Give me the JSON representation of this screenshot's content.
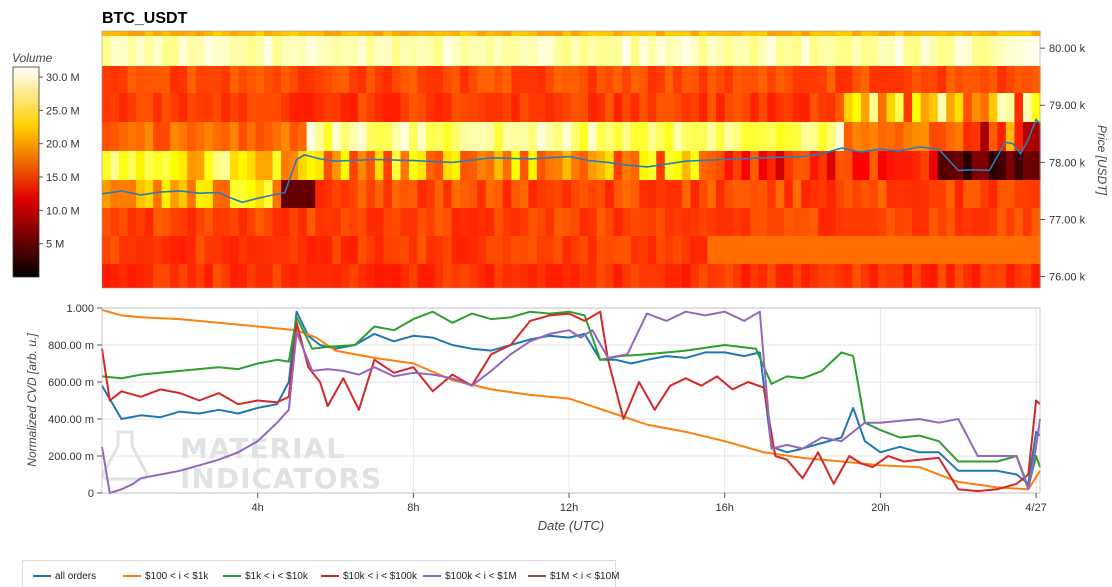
{
  "title": "BTC_USDT",
  "colors": {
    "all_orders": "#1f77b4",
    "s100_1k": "#ff7f0e",
    "s1k_10k": "#2ca02c",
    "s10k_100k": "#d62728",
    "s100k_1M": "#9467bd",
    "s1M_10M": "#8c564b"
  },
  "watermark": [
    "MATERIAL",
    "INDICATORS"
  ],
  "chart_data": [
    {
      "type": "heatmap",
      "title": "BTC_USDT",
      "ylabel": "Price [USDT]",
      "y_ticks": [
        "80.00 k",
        "79.00 k",
        "78.00 k",
        "77.00 k",
        "76.00 k"
      ],
      "y_tick_values": [
        80000,
        79000,
        78000,
        77000,
        76000
      ],
      "ylim": [
        75800,
        80300
      ],
      "x_range_hours": [
        0,
        24.1
      ],
      "colorbar": {
        "label": "Volume",
        "ticks": [
          "30.0 M",
          "25.0 M",
          "20.0 M",
          "15.0 M",
          "10.0 M",
          "5 M"
        ],
        "tick_values": [
          30,
          25,
          20,
          15,
          10,
          5
        ],
        "range": [
          0,
          31.5
        ],
        "colormap": "hot"
      },
      "price_series": {
        "name": "BTC price",
        "x": [
          0,
          0.5,
          1,
          1.5,
          2,
          2.5,
          3,
          3.3,
          3.6,
          4,
          4.4,
          4.7,
          5.0,
          5.2,
          5.6,
          6,
          7,
          8,
          9,
          10,
          11,
          12,
          12.5,
          13,
          13.5,
          14,
          15,
          16,
          17,
          18,
          18.5,
          19,
          19.5,
          20,
          20.5,
          21,
          21.5,
          22,
          22.4,
          22.8,
          23.0,
          23.2,
          23.4,
          23.6,
          23.8,
          24.0,
          24.1
        ],
        "y": [
          77450,
          77500,
          77430,
          77480,
          77500,
          77460,
          77470,
          77380,
          77300,
          77370,
          77430,
          77470,
          78050,
          78130,
          78060,
          78020,
          78050,
          78030,
          78000,
          78080,
          78060,
          78100,
          78030,
          78000,
          77950,
          77920,
          78020,
          78050,
          78080,
          78100,
          78150,
          78250,
          78180,
          78230,
          78200,
          78270,
          78230,
          77860,
          77870,
          77860,
          78100,
          78350,
          78330,
          78150,
          78400,
          78750,
          78680
        ]
      }
    },
    {
      "type": "line",
      "xlabel": "Date (UTC)",
      "ylabel": "Normalized CVD [arb. u.]",
      "x_ticks": [
        "4h",
        "8h",
        "12h",
        "16h",
        "20h",
        "4/27"
      ],
      "x_tick_hours": [
        4,
        8,
        12,
        16,
        20,
        24
      ],
      "y_ticks": [
        "1.000",
        "800.00 m",
        "600.00 m",
        "400.00 m",
        "200.00 m",
        "0"
      ],
      "y_tick_values": [
        1.0,
        0.8,
        0.6,
        0.4,
        0.2,
        0
      ],
      "ylim": [
        0,
        1.0
      ],
      "grid": true,
      "legend_position": "bottom-left",
      "series": [
        {
          "name": "all orders",
          "key": "all_orders",
          "x": [
            0,
            0.5,
            1,
            1.5,
            2,
            2.5,
            3,
            3.5,
            4,
            4.5,
            4.8,
            5.0,
            5.3,
            5.6,
            6,
            6.5,
            7,
            7.5,
            8,
            8.5,
            9,
            9.5,
            10,
            10.5,
            11,
            11.5,
            12,
            12.4,
            12.8,
            13.2,
            13.6,
            14,
            14.5,
            15,
            15.5,
            16,
            16.5,
            16.9,
            17.2,
            17.6,
            18,
            18.5,
            19,
            19.3,
            19.6,
            20,
            20.5,
            21,
            21.5,
            22,
            22.5,
            23,
            23.5,
            23.8,
            24.0,
            24.1
          ],
          "y": [
            0.58,
            0.4,
            0.42,
            0.41,
            0.44,
            0.43,
            0.45,
            0.43,
            0.46,
            0.48,
            0.6,
            0.98,
            0.85,
            0.8,
            0.78,
            0.8,
            0.86,
            0.82,
            0.85,
            0.84,
            0.8,
            0.78,
            0.77,
            0.8,
            0.83,
            0.85,
            0.84,
            0.86,
            0.72,
            0.72,
            0.7,
            0.72,
            0.74,
            0.73,
            0.76,
            0.76,
            0.74,
            0.76,
            0.25,
            0.22,
            0.24,
            0.27,
            0.3,
            0.46,
            0.28,
            0.22,
            0.25,
            0.22,
            0.22,
            0.12,
            0.12,
            0.12,
            0.1,
            0.05,
            0.33,
            0.31
          ]
        },
        {
          "name": "$100 < i < $1k",
          "key": "s100_1k",
          "x": [
            0,
            0.5,
            1,
            2,
            3,
            4,
            5,
            5.5,
            6,
            7,
            8,
            9,
            10,
            11,
            12,
            13,
            14,
            15,
            16,
            17,
            18,
            19,
            20,
            21,
            22,
            23,
            23.8,
            24.1
          ],
          "y": [
            0.99,
            0.96,
            0.95,
            0.94,
            0.92,
            0.9,
            0.88,
            0.84,
            0.77,
            0.73,
            0.7,
            0.61,
            0.56,
            0.53,
            0.51,
            0.44,
            0.37,
            0.33,
            0.28,
            0.22,
            0.19,
            0.17,
            0.15,
            0.14,
            0.06,
            0.03,
            0.02,
            0.12
          ]
        },
        {
          "name": "$1k < i < $10k",
          "key": "s1k_10k",
          "x": [
            0,
            0.5,
            1,
            2,
            3,
            3.5,
            4,
            4.5,
            4.8,
            5.0,
            5.4,
            5.8,
            6.5,
            7,
            7.5,
            8,
            8.5,
            9,
            9.5,
            10,
            10.5,
            11,
            11.5,
            12,
            12.4,
            12.8,
            13.3,
            14,
            15,
            16,
            16.8,
            17.2,
            17.6,
            18,
            18.5,
            19,
            19.3,
            19.6,
            20,
            20.5,
            21,
            21.5,
            22,
            22.5,
            23,
            23.5,
            23.8,
            24.0,
            24.1
          ],
          "y": [
            0.63,
            0.62,
            0.64,
            0.66,
            0.68,
            0.67,
            0.7,
            0.72,
            0.71,
            0.95,
            0.78,
            0.79,
            0.8,
            0.9,
            0.88,
            0.94,
            0.98,
            0.92,
            0.97,
            0.94,
            0.95,
            0.98,
            0.97,
            0.98,
            0.96,
            0.72,
            0.74,
            0.75,
            0.77,
            0.8,
            0.78,
            0.59,
            0.63,
            0.62,
            0.66,
            0.76,
            0.74,
            0.38,
            0.34,
            0.3,
            0.31,
            0.28,
            0.17,
            0.17,
            0.17,
            0.2,
            0.03,
            0.2,
            0.14
          ]
        },
        {
          "name": "$10k < i < $100k",
          "key": "s10k_100k",
          "x": [
            0,
            0.2,
            0.5,
            1,
            1.5,
            2,
            2.5,
            3,
            3.5,
            4,
            4.5,
            4.8,
            5.0,
            5.3,
            5.6,
            5.8,
            6.2,
            6.6,
            7,
            7.5,
            8,
            8.5,
            9,
            9.5,
            10,
            10.5,
            11,
            11.5,
            12,
            12.4,
            12.8,
            13.0,
            13.4,
            13.8,
            14.2,
            14.6,
            15,
            15.4,
            15.8,
            16.2,
            16.6,
            17.0,
            17.3,
            17.6,
            18,
            18.4,
            18.8,
            19.2,
            19.5,
            19.8,
            20.2,
            20.6,
            21,
            21.5,
            22,
            22.5,
            23,
            23.5,
            23.8,
            24.0,
            24.1
          ],
          "y": [
            0.78,
            0.5,
            0.55,
            0.52,
            0.56,
            0.54,
            0.5,
            0.54,
            0.48,
            0.5,
            0.49,
            0.52,
            0.92,
            0.68,
            0.6,
            0.47,
            0.62,
            0.45,
            0.72,
            0.65,
            0.68,
            0.55,
            0.64,
            0.58,
            0.75,
            0.8,
            0.93,
            0.96,
            0.97,
            0.93,
            0.98,
            0.72,
            0.4,
            0.6,
            0.45,
            0.58,
            0.62,
            0.58,
            0.63,
            0.56,
            0.6,
            0.57,
            0.2,
            0.18,
            0.08,
            0.22,
            0.05,
            0.2,
            0.16,
            0.14,
            0.2,
            0.17,
            0.18,
            0.19,
            0.02,
            0.01,
            0.02,
            0.05,
            0.1,
            0.5,
            0.48
          ]
        },
        {
          "name": "$100k < i < $1M",
          "key": "s100k_1M",
          "x": [
            0,
            0.2,
            0.5,
            0.8,
            1,
            1.5,
            2,
            2.5,
            3,
            3.5,
            4,
            4.5,
            4.8,
            5.0,
            5.4,
            5.8,
            6.2,
            6.6,
            7,
            7.5,
            8,
            8.5,
            9,
            9.5,
            10,
            10.5,
            11,
            11.5,
            12,
            12.3,
            12.6,
            13,
            13.5,
            14,
            14.5,
            15,
            15.5,
            16,
            16.5,
            16.9,
            17.2,
            17.6,
            18,
            18.5,
            19,
            19.3,
            19.6,
            20,
            20.5,
            21,
            21.5,
            22,
            22.5,
            23,
            23.5,
            23.8,
            24.0,
            24.1
          ],
          "y": [
            0.25,
            0.0,
            0.02,
            0.05,
            0.08,
            0.1,
            0.12,
            0.15,
            0.18,
            0.22,
            0.28,
            0.38,
            0.45,
            0.87,
            0.66,
            0.67,
            0.66,
            0.64,
            0.68,
            0.63,
            0.65,
            0.64,
            0.62,
            0.58,
            0.66,
            0.75,
            0.82,
            0.86,
            0.88,
            0.84,
            0.88,
            0.73,
            0.75,
            0.97,
            0.93,
            0.98,
            0.96,
            0.98,
            0.93,
            0.98,
            0.24,
            0.26,
            0.24,
            0.3,
            0.28,
            0.33,
            0.38,
            0.38,
            0.39,
            0.4,
            0.38,
            0.4,
            0.2,
            0.2,
            0.2,
            0.02,
            0.25,
            0.4
          ]
        },
        {
          "name": "$1M < i < $10M",
          "key": "s1M_10M",
          "x": [],
          "y": []
        }
      ]
    }
  ]
}
